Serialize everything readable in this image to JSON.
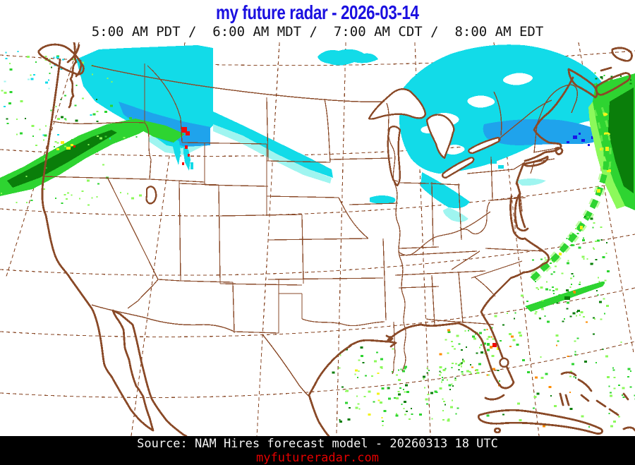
{
  "header": {
    "title": "my future radar - 2026-03-14",
    "time_line": "5:00 AM PDT /  6:00 AM MDT /  7:00 AM CDT /  8:00 AM EDT"
  },
  "footer": {
    "source_line": "Source: NAM Hires forecast model - 20260313 18 UTC",
    "website": "myfutureradar.com"
  },
  "colors": {
    "title_blue": "#1b10e0",
    "time_text": "#141414",
    "footer_bg": "#000000",
    "footer_text": "#f5f5f5",
    "website_red": "#e60000",
    "map_line": "#8a4a28",
    "light_rain": "#8cf95b",
    "rain": "#2ed431",
    "heavy_rain": "#0a7e0a",
    "very_heavy_rain": "#f3f317",
    "intense_rain": "#ff8c00",
    "extreme_rain": "#f20a0a",
    "light_snow": "#9ff5f0",
    "snow": "#12dbe8",
    "heavy_snow": "#1fa3ec",
    "intense_snow": "#1717e8"
  },
  "map": {
    "type": "weather-radar-forecast-map",
    "model": "NAM Hires",
    "region": "Continental United States and southern Canada",
    "valid_date": "2026-03-14",
    "init_time": "20260313 18 UTC",
    "precip_regions": [
      {
        "area": "Pacific Northwest coast into Idaho",
        "type": "rain",
        "note": "banded rain with embedded heavy cells and small yellow/red cores"
      },
      {
        "area": "Montana and northern Rockies into Canada",
        "type": "snow",
        "note": "large cyan shield with heavy blue core; small red cells near Yellowstone"
      },
      {
        "area": "North Dakota",
        "type": "snow",
        "note": "narrow band trailing southeast"
      },
      {
        "area": "Iowa",
        "type": "light snow",
        "note": "small streak"
      },
      {
        "area": "Saskatchewan",
        "type": "snow",
        "note": "isolated blob near top of map"
      },
      {
        "area": "Great Lakes / Ontario / Quebec / New England",
        "type": "snow",
        "note": "broad cyan shield; heavier blue band along St. Lawrence and Maine with dark-blue specks"
      },
      {
        "area": "Atlantic offshore from Nova Scotia to the Carolinas",
        "type": "rain",
        "note": "long frontal arc with yellow cells; dense green off Nova Scotia"
      },
      {
        "area": "Gulf of Mexico",
        "type": "rain",
        "note": "scattered showers off Texas and the central Gulf"
      },
      {
        "area": "Florida / Bahamas / western Atlantic",
        "type": "rain",
        "note": "scattered showers, isolated orange-red cells"
      },
      {
        "area": "Pacific offshore",
        "type": "light rain",
        "note": "sparse speckles"
      }
    ]
  }
}
